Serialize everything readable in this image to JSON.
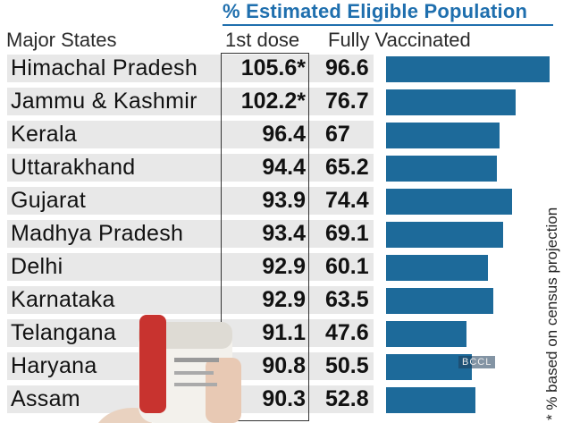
{
  "header": {
    "title": "% Estimated Eligible Population",
    "col_states": "Major States",
    "col_dose1": "1st dose",
    "col_full": "Fully Vaccinated"
  },
  "footnote": "* % based on census projection",
  "watermark": "BCCL",
  "colors": {
    "accent": "#1f6fae",
    "bar": "#1d6a9a",
    "row_bg": "#e8e8e8"
  },
  "chart_data": {
    "type": "table",
    "columns": [
      "Major States",
      "1st dose",
      "Fully Vaccinated"
    ],
    "rows": [
      {
        "state": "Himachal Pradesh",
        "first_dose": "105.6*",
        "fully_vaccinated": "96.6"
      },
      {
        "state": "Jammu & Kashmir",
        "first_dose": "102.2*",
        "fully_vaccinated": "76.7"
      },
      {
        "state": "Kerala",
        "first_dose": "96.4",
        "fully_vaccinated": "67"
      },
      {
        "state": "Uttarakhand",
        "first_dose": "94.4",
        "fully_vaccinated": "65.2"
      },
      {
        "state": "Gujarat",
        "first_dose": "93.9",
        "fully_vaccinated": "74.4"
      },
      {
        "state": "Madhya Pradesh",
        "first_dose": "93.4",
        "fully_vaccinated": "69.1"
      },
      {
        "state": "Delhi",
        "first_dose": "92.9",
        "fully_vaccinated": "60.1"
      },
      {
        "state": "Karnataka",
        "first_dose": "92.9",
        "fully_vaccinated": "63.5"
      },
      {
        "state": "Telangana",
        "first_dose": "91.1",
        "fully_vaccinated": "47.6"
      },
      {
        "state": "Haryana",
        "first_dose": "90.8",
        "fully_vaccinated": "50.5"
      },
      {
        "state": "Assam",
        "first_dose": "90.3",
        "fully_vaccinated": "52.8"
      }
    ],
    "bar_series": "fully_vaccinated",
    "bar_max": 96.6
  }
}
